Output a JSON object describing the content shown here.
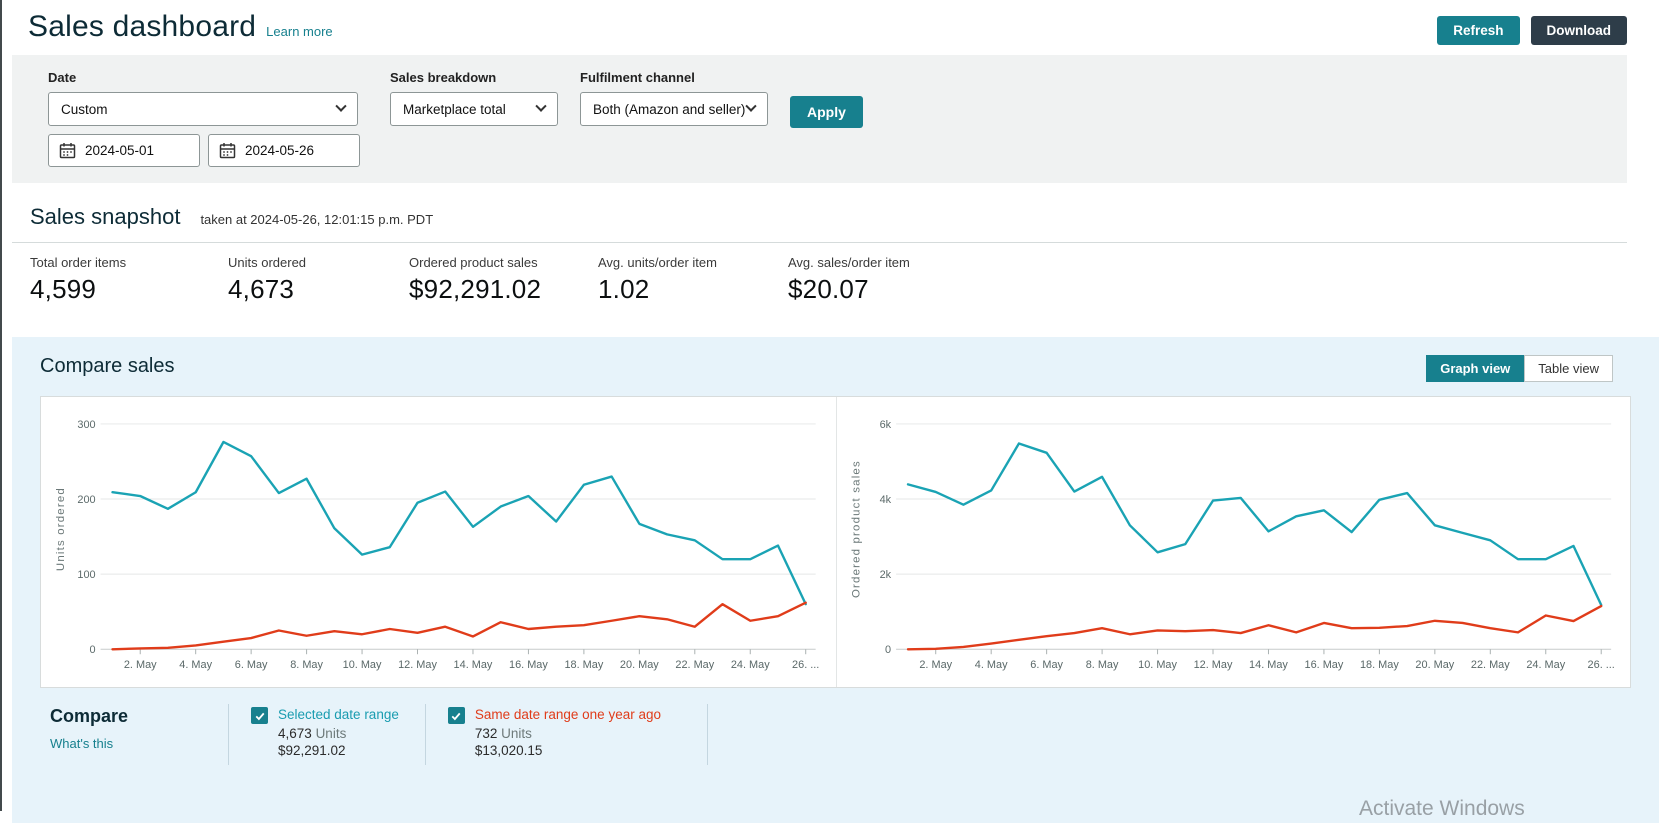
{
  "header": {
    "title": "Sales dashboard",
    "learn_more": "Learn more",
    "refresh_label": "Refresh",
    "download_label": "Download"
  },
  "filters": {
    "date_label": "Date",
    "date_value": "Custom",
    "date_from": "2024-05-01",
    "date_to": "2024-05-26",
    "sales_breakdown_label": "Sales breakdown",
    "sales_breakdown_value": "Marketplace total",
    "fulfilment_label": "Fulfilment channel",
    "fulfilment_value": "Both (Amazon and seller)",
    "apply_label": "Apply"
  },
  "snapshot": {
    "title": "Sales snapshot",
    "taken_at": "taken at 2024-05-26, 12:01:15 p.m. PDT",
    "stats": [
      {
        "label": "Total order items",
        "value": "4,599"
      },
      {
        "label": "Units ordered",
        "value": "4,673"
      },
      {
        "label": "Ordered product sales",
        "value": "$92,291.02"
      },
      {
        "label": "Avg. units/order item",
        "value": "1.02"
      },
      {
        "label": "Avg. sales/order item",
        "value": "$20.07"
      }
    ]
  },
  "compare_sales": {
    "title": "Compare sales",
    "graph_view_label": "Graph view",
    "table_view_label": "Table view",
    "legend": {
      "title": "Compare",
      "whats_this": "What's this",
      "items": [
        {
          "label": "Selected date range",
          "units": "4,673",
          "units_suffix": "Units",
          "sales": "$92,291.02",
          "color": "#1a9cb0"
        },
        {
          "label": "Same date range one year ago",
          "units": "732",
          "units_suffix": "Units",
          "sales": "$13,020.15",
          "color": "#e03c1a"
        }
      ]
    }
  },
  "watermark": "Activate Windows",
  "colors": {
    "accent_teal": "#17808e",
    "dark_button": "#2e3d49",
    "current_line": "#1aa3b4",
    "previous_line": "#e03c1a",
    "section_bg": "#e7f3fa"
  },
  "chart_data": [
    {
      "type": "line",
      "title": "Units ordered by day",
      "xlabel": "",
      "ylabel": "Units ordered",
      "x_count": 26,
      "x_tick_labels": [
        "2. May",
        "4. May",
        "6. May",
        "8. May",
        "10. May",
        "12. May",
        "14. May",
        "16. May",
        "18. May",
        "20. May",
        "22. May",
        "24. May",
        "26. ..."
      ],
      "ylim": [
        0,
        320
      ],
      "y_ticks": [
        {
          "value": 0,
          "label": "0"
        },
        {
          "value": 100,
          "label": "100"
        },
        {
          "value": 200,
          "label": "200"
        },
        {
          "value": 300,
          "label": "300"
        }
      ],
      "grid": true,
      "legend_position": "bottom",
      "series": [
        {
          "name": "Selected date range",
          "color": "#1aa3b4",
          "values": [
            209,
            204,
            187,
            209,
            276,
            257,
            208,
            227,
            161,
            126,
            136,
            195,
            210,
            163,
            190,
            204,
            170,
            219,
            230,
            167,
            153,
            145,
            120,
            120,
            138,
            60
          ]
        },
        {
          "name": "Same date range one year ago",
          "color": "#e03c1a",
          "values": [
            0,
            1,
            2,
            5,
            10,
            15,
            25,
            18,
            24,
            20,
            27,
            22,
            30,
            17,
            36,
            27,
            30,
            32,
            38,
            44,
            40,
            30,
            60,
            38,
            44,
            62
          ]
        }
      ]
    },
    {
      "type": "line",
      "title": "Ordered product sales by day",
      "xlabel": "",
      "ylabel": "Ordered product sales",
      "x_count": 26,
      "x_tick_labels": [
        "2. May",
        "4. May",
        "6. May",
        "8. May",
        "10. May",
        "12. May",
        "14. May",
        "16. May",
        "18. May",
        "20. May",
        "22. May",
        "24. May",
        "26. ..."
      ],
      "ylim": [
        0,
        6400
      ],
      "y_ticks": [
        {
          "value": 0,
          "label": "0"
        },
        {
          "value": 2000,
          "label": "2k"
        },
        {
          "value": 4000,
          "label": "4k"
        },
        {
          "value": 6000,
          "label": "6k"
        }
      ],
      "grid": true,
      "legend_position": "bottom",
      "series": [
        {
          "name": "Selected date range",
          "color": "#1aa3b4",
          "values": [
            4390,
            4190,
            3850,
            4230,
            5480,
            5230,
            4200,
            4590,
            3300,
            2580,
            2800,
            3960,
            4030,
            3140,
            3540,
            3700,
            3120,
            3980,
            4160,
            3300,
            3100,
            2900,
            2400,
            2400,
            2750,
            1180
          ]
        },
        {
          "name": "Same date range one year ago",
          "color": "#e03c1a",
          "values": [
            0,
            10,
            60,
            150,
            250,
            350,
            430,
            560,
            400,
            500,
            480,
            510,
            430,
            640,
            450,
            700,
            560,
            570,
            620,
            760,
            700,
            560,
            450,
            900,
            750,
            1150
          ]
        }
      ]
    }
  ]
}
